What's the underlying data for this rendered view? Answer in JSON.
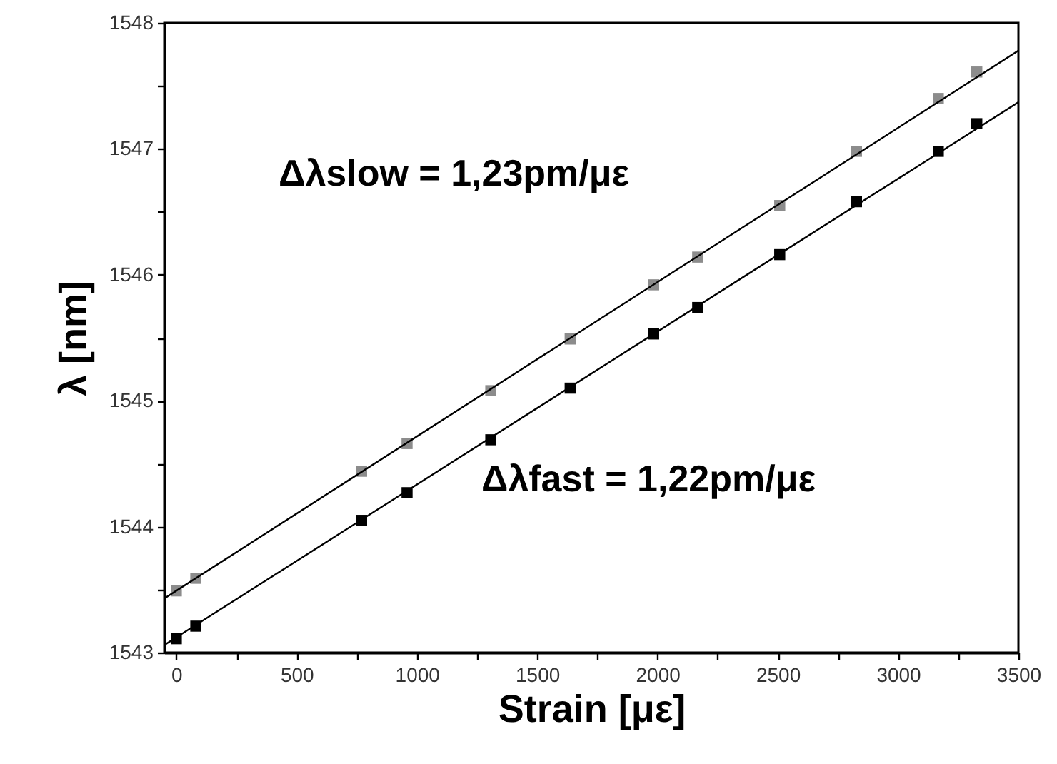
{
  "chart_data": {
    "type": "scatter",
    "xlabel": "Strain [με]",
    "ylabel": "λ [nm]",
    "xlim": [
      -50,
      3500
    ],
    "ylim": [
      1543,
      1548
    ],
    "xticks": [
      0,
      {
        "value": 250,
        "label": null
      },
      500,
      {
        "value": 750,
        "label": null
      },
      1000,
      {
        "value": 1250,
        "label": null
      },
      1500,
      {
        "value": 1750,
        "label": null
      },
      2000,
      {
        "value": 2250,
        "label": null
      },
      2500,
      {
        "value": 2750,
        "label": null
      },
      3000,
      {
        "value": 3250,
        "label": null
      },
      3500
    ],
    "yticks": [
      1543,
      {
        "value": 1543.5,
        "label": null
      },
      1544,
      {
        "value": 1544.5,
        "label": null
      },
      1545,
      {
        "value": 1545.5,
        "label": null
      },
      1546,
      {
        "value": 1546.5,
        "label": null
      },
      1547,
      {
        "value": 1547.5,
        "label": null
      },
      1548
    ],
    "marker": "square",
    "grid": false,
    "annotations": [
      "Δλslow = 1,23pm/με",
      "Δλfast = 1,22pm/με"
    ],
    "series": [
      {
        "color": "#8c8c8c",
        "x": [
          0,
          81,
          770,
          959,
          1307,
          1637,
          1984,
          2167,
          2508,
          2827,
          3167,
          3327
        ],
        "values": [
          1543.49,
          1543.59,
          1544.44,
          1544.66,
          1545.08,
          1545.49,
          1545.92,
          1546.14,
          1546.55,
          1546.98,
          1547.4,
          1547.61
        ]
      },
      {
        "color": "#000000",
        "x": [
          0,
          81,
          770,
          959,
          1307,
          1637,
          1984,
          2167,
          2508,
          2827,
          3167,
          3327
        ],
        "values": [
          1543.11,
          1543.21,
          1544.05,
          1544.27,
          1544.69,
          1545.1,
          1545.53,
          1545.74,
          1546.16,
          1546.58,
          1546.98,
          1547.2
        ]
      },
      {
        "type": "line",
        "marker": "none",
        "color": "#000000",
        "x": [
          -50,
          3500
        ],
        "values": [
          1543.43,
          1547.78
        ]
      },
      {
        "type": "line",
        "marker": "none",
        "color": "#000000",
        "x": [
          -50,
          3500
        ],
        "values": [
          1543.06,
          1547.37
        ]
      }
    ]
  }
}
